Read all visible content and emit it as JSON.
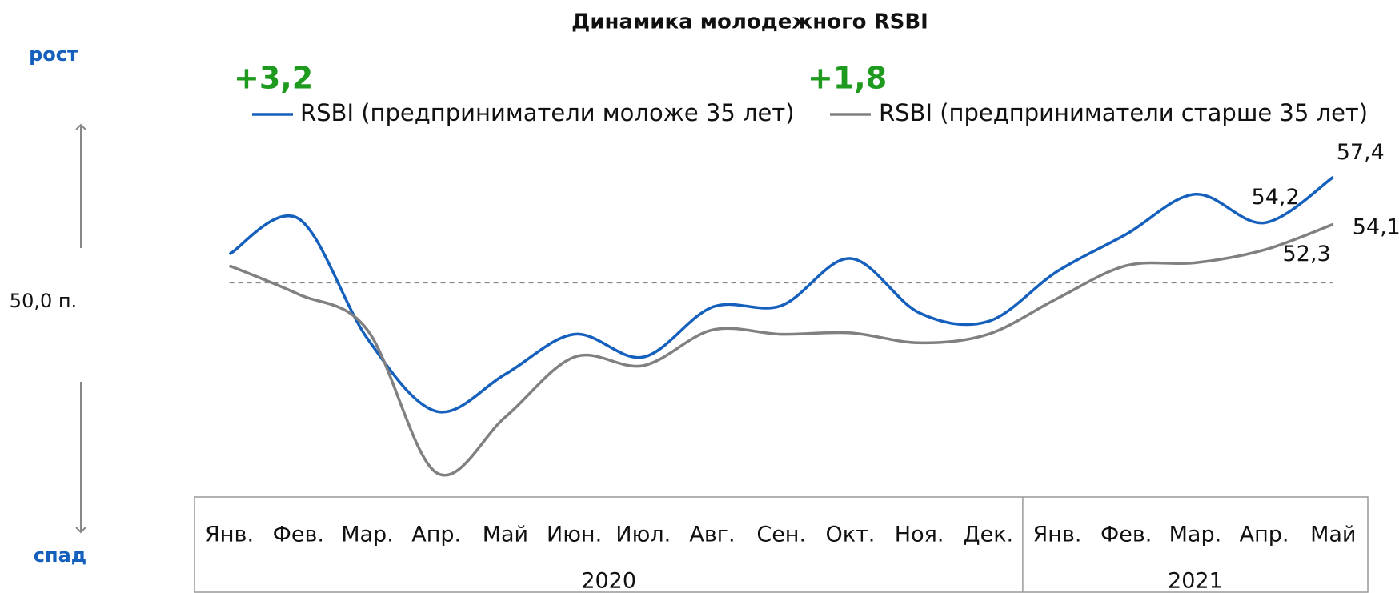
{
  "chart_data": {
    "type": "line",
    "title": "Динамика молодежного RSBI",
    "categories": [
      "Янв.",
      "Фев.",
      "Мар.",
      "Апр.",
      "Май",
      "Июн.",
      "Июл.",
      "Авг.",
      "Сен.",
      "Окт.",
      "Ноя.",
      "Дек.",
      "Янв.",
      "Фев.",
      "Мар.",
      "Апр.",
      "Май"
    ],
    "years": [
      {
        "label": "2020",
        "count": 12
      },
      {
        "label": "2021",
        "count": 5
      }
    ],
    "series": [
      {
        "name": "RSBI (предприниматели моложе 35 лет)",
        "color": "#1560bd",
        "values": [
          52.0,
          54.5,
          46.1,
          41.0,
          43.6,
          46.4,
          44.8,
          48.3,
          48.4,
          51.7,
          47.9,
          47.3,
          50.8,
          53.4,
          56.2,
          54.2,
          57.4
        ],
        "value_labels": [
          null,
          null,
          null,
          null,
          null,
          null,
          null,
          null,
          null,
          null,
          null,
          null,
          null,
          null,
          null,
          "54,2",
          "57,4"
        ],
        "change": "+3,2"
      },
      {
        "name": "RSBI (предприниматели старше 35 лет)",
        "color": "#808080",
        "values": [
          51.2,
          49.2,
          46.7,
          36.7,
          40.6,
          44.8,
          44.2,
          46.7,
          46.4,
          46.5,
          45.8,
          46.4,
          48.9,
          51.2,
          51.4,
          52.3,
          54.1
        ],
        "value_labels": [
          null,
          null,
          null,
          null,
          null,
          null,
          null,
          null,
          null,
          null,
          null,
          null,
          null,
          null,
          null,
          "52,3",
          "54,1"
        ],
        "change": "+1,8"
      }
    ],
    "reference_line": {
      "value": 50,
      "label": "50,0 п."
    },
    "up_label": "рост",
    "down_label": "спад",
    "ylim": [
      34,
      60
    ]
  }
}
